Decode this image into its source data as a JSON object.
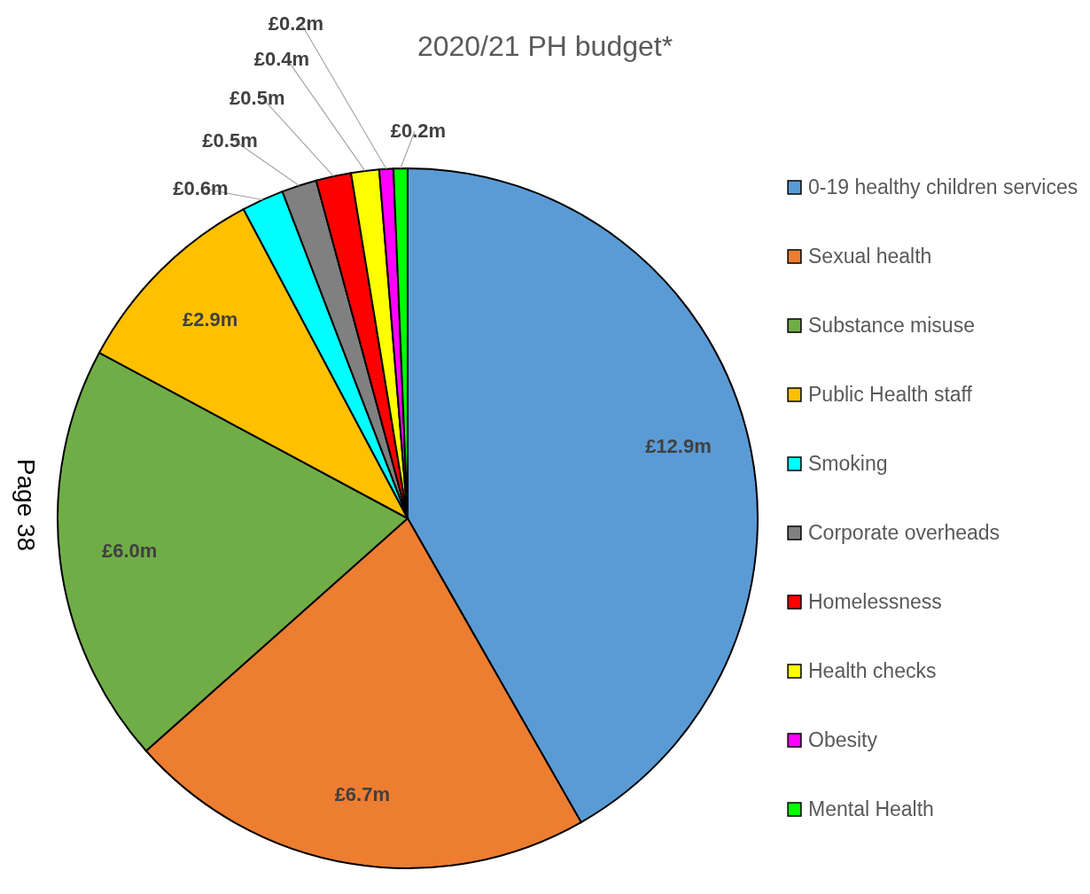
{
  "chart_data": {
    "type": "pie",
    "title": "2020/21 PH budget*",
    "categories": [
      "0-19 healthy children services",
      "Sexual health",
      "Substance misuse",
      "Public Health staff",
      "Smoking",
      "Corporate overheads",
      "Homelessness",
      "Health checks",
      "Obesity",
      "Mental Health"
    ],
    "values": [
      12.9,
      6.7,
      6.0,
      2.9,
      0.6,
      0.5,
      0.5,
      0.4,
      0.2,
      0.2
    ],
    "value_labels": [
      "£12.9m",
      "£6.7m",
      "£6.0m",
      "£2.9m",
      "£0.6m",
      "£0.5m",
      "£0.5m",
      "£0.4m",
      "£0.2m",
      "£0.2m"
    ],
    "colors": [
      "#5b9bd5",
      "#ed7d31",
      "#70ad47",
      "#ffc000",
      "#00ffff",
      "#808080",
      "#ff0000",
      "#ffff00",
      "#ff00ff",
      "#00ff00"
    ],
    "legend": "right",
    "annotations": [
      "Page 38"
    ]
  }
}
